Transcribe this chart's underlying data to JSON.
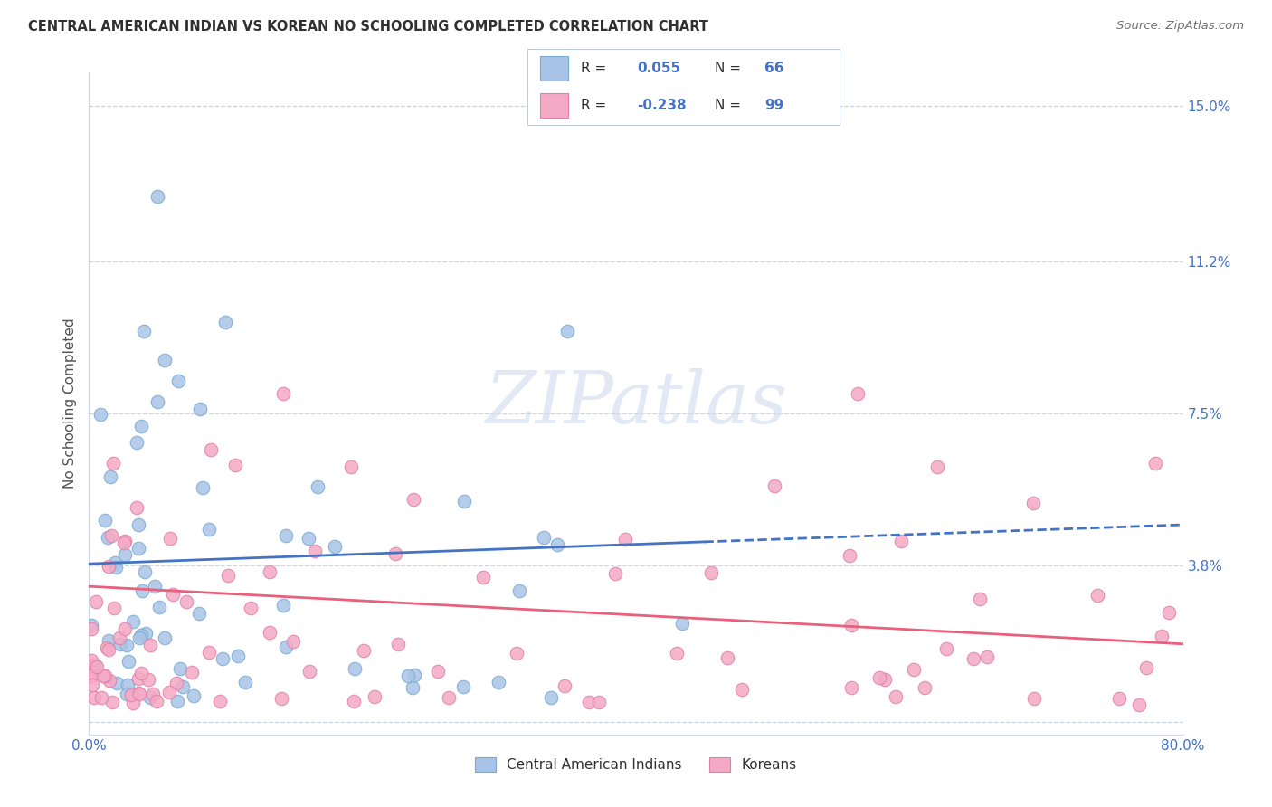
{
  "title": "CENTRAL AMERICAN INDIAN VS KOREAN NO SCHOOLING COMPLETED CORRELATION CHART",
  "source": "Source: ZipAtlas.com",
  "ylabel": "No Schooling Completed",
  "xlim": [
    0.0,
    0.8
  ],
  "ylim": [
    -0.003,
    0.158
  ],
  "ytick_vals": [
    0.0,
    0.038,
    0.075,
    0.112,
    0.15
  ],
  "ytick_labels_right": [
    "",
    "3.8%",
    "7.5%",
    "11.2%",
    "15.0%"
  ],
  "xtick_vals": [
    0.0,
    0.1,
    0.2,
    0.3,
    0.4,
    0.5,
    0.6,
    0.7,
    0.8
  ],
  "xtick_labels": [
    "0.0%",
    "",
    "",
    "",
    "",
    "",
    "",
    "",
    "80.0%"
  ],
  "blue_R": 0.055,
  "blue_N": 66,
  "pink_R": -0.238,
  "pink_N": 99,
  "blue_dot_color": "#a8c4e8",
  "blue_dot_edge": "#7aaad0",
  "pink_dot_color": "#f4aac4",
  "pink_dot_edge": "#e080a8",
  "blue_line_color": "#4472c4",
  "pink_line_color": "#e8607a",
  "watermark_color": "#ccd8ec",
  "background_color": "#ffffff",
  "grid_color": "#c8d4e4",
  "axis_color": "#d0d8e8",
  "tick_label_color": "#4472c4",
  "ylabel_color": "#505050",
  "title_color": "#303030",
  "source_color": "#707070",
  "legend_text_color": "#303030",
  "legend_val_color": "#4472c4",
  "legend_box_color": "#f0f4f8",
  "blue_line_solid_end": 0.45,
  "blue_line_y_start": 0.0385,
  "blue_line_y_end": 0.048,
  "pink_line_y_start": 0.033,
  "pink_line_y_end": 0.019
}
